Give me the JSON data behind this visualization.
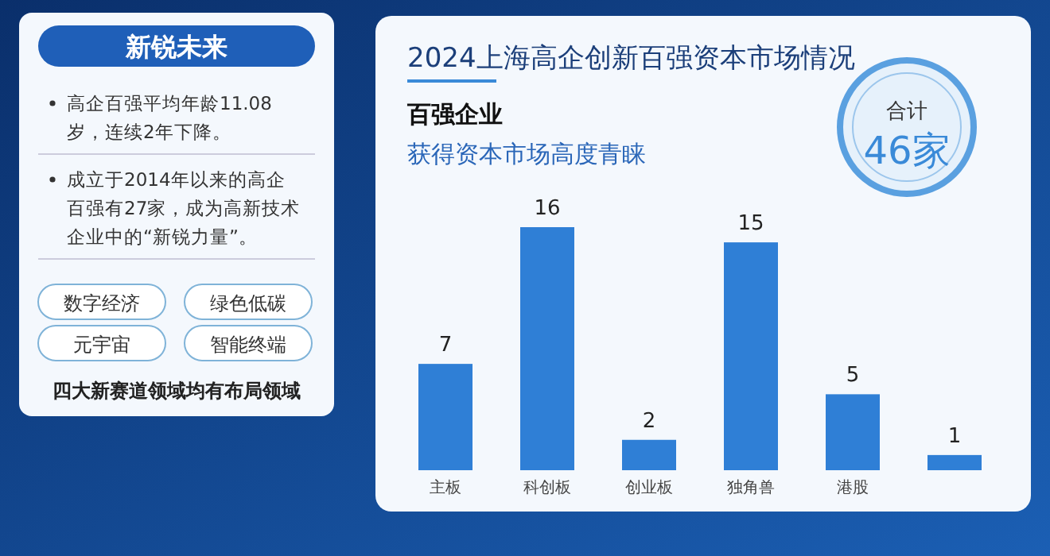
{
  "chart_data": [
    {
      "type": "other",
      "title": "新锐未来",
      "annotations": [
        "高企百强平均年龄11.08岁，连续2年下降。",
        "成立于2014年以来的高企百强有27家，成为高新技术企业中的“新锐力量”。",
        "数字经济",
        "绿色低碳",
        "元宇宙",
        "智能终端",
        "四大新赛道领域均有布局领域"
      ]
    },
    {
      "type": "bar",
      "title": "2024上海高企创新百强资本市场情况",
      "subtitle": "百强企业",
      "annotations": [
        "获得资本市场高度青睐",
        "合计",
        "46家"
      ],
      "categories": [
        "主板",
        "科创板",
        "创业板",
        "独角兽",
        "港股",
        null
      ],
      "values": [
        7,
        16,
        2,
        15,
        5,
        1
      ],
      "color": "#2f7fd6",
      "data_labels": true
    }
  ]
}
